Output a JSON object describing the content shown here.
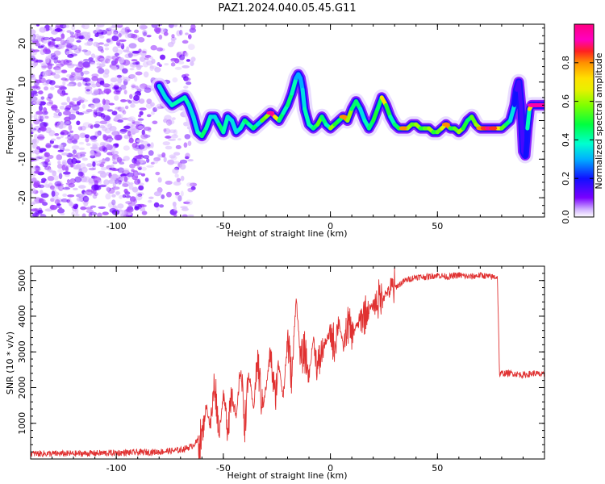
{
  "title": "PAZ1.2024.040.05.45.G11",
  "chart_data": [
    {
      "type": "heatmap",
      "xlabel": "Height of straight line (km)",
      "ylabel": "Frequency (Hz)",
      "xlim": [
        -140,
        100
      ],
      "ylim": [
        -25,
        25
      ],
      "xticks": [
        -100,
        -50,
        0,
        50
      ],
      "yticks": [
        -20,
        -10,
        0,
        10,
        20
      ],
      "grid": false,
      "colorbar": {
        "label": "Normalized spectral amplitude",
        "range": [
          0,
          1
        ],
        "ticks": [
          0.0,
          0.2,
          0.4,
          0.6,
          0.8
        ],
        "colormap": "gist_ncar"
      },
      "noise_region": {
        "x_range": [
          -140,
          -64
        ],
        "y_range": [
          -25,
          25
        ]
      },
      "ridge": {
        "x": [
          -80,
          -77,
          -74,
          -71,
          -68,
          -66,
          -64,
          -62,
          -60,
          -58,
          -56,
          -54,
          -52,
          -50,
          -48,
          -46,
          -44,
          -42,
          -40,
          -38,
          -36,
          -34,
          -32,
          -30,
          -28,
          -26,
          -24,
          -22,
          -20,
          -18,
          -16,
          -15,
          -14,
          -13,
          -12,
          -10,
          -8,
          -6,
          -4,
          -2,
          0,
          2,
          4,
          6,
          8,
          10,
          12,
          14,
          16,
          18,
          20,
          22,
          24,
          26,
          28,
          30,
          32,
          34,
          36,
          38,
          40,
          42,
          44,
          46,
          48,
          50,
          52,
          54,
          56,
          58,
          60,
          62,
          64,
          66,
          68,
          70,
          72,
          74,
          76,
          78,
          80,
          82,
          84,
          86,
          87,
          88,
          89,
          90,
          91,
          92,
          93,
          94,
          96,
          98,
          100
        ],
        "y": [
          9,
          6,
          4,
          5,
          6,
          4,
          1,
          -3,
          -4,
          -2,
          1,
          1,
          -1,
          -3,
          1,
          0,
          -3,
          -2,
          0,
          -1,
          -2,
          -1,
          0,
          1,
          2,
          1,
          0,
          2,
          4,
          7,
          11,
          12,
          11,
          8,
          3,
          -1,
          -2,
          -1,
          1,
          -1,
          -2,
          -1,
          0,
          1,
          0,
          3,
          5,
          3,
          0,
          -2,
          0,
          3,
          6,
          4,
          1,
          -1,
          -2,
          -2,
          -2,
          -1,
          -1,
          -2,
          -2,
          -2,
          -3,
          -3,
          -2,
          -1,
          -2,
          -2,
          -3,
          -2,
          0,
          1,
          -1,
          -2,
          -2,
          -2,
          -2,
          -2,
          -2,
          -1,
          0,
          4,
          8,
          10,
          4,
          -8,
          -9,
          -2,
          3,
          4,
          4,
          4,
          4
        ],
        "amplitude": [
          0.35,
          0.35,
          0.4,
          0.4,
          0.4,
          0.35,
          0.35,
          0.4,
          0.45,
          0.4,
          0.35,
          0.35,
          0.45,
          0.4,
          0.35,
          0.35,
          0.35,
          0.4,
          0.45,
          0.4,
          0.45,
          0.35,
          0.55,
          0.6,
          0.9,
          0.7,
          0.45,
          0.4,
          0.45,
          0.4,
          0.3,
          0.3,
          0.3,
          0.35,
          0.4,
          0.4,
          0.45,
          0.55,
          0.45,
          0.4,
          0.6,
          0.5,
          0.45,
          0.8,
          0.6,
          0.45,
          0.45,
          0.35,
          0.4,
          0.45,
          0.5,
          0.45,
          0.7,
          0.5,
          0.4,
          0.45,
          0.5,
          0.8,
          0.6,
          0.55,
          0.6,
          0.5,
          0.55,
          0.6,
          0.5,
          0.55,
          0.65,
          0.8,
          0.5,
          0.55,
          0.6,
          0.5,
          0.45,
          0.55,
          0.6,
          0.8,
          0.85,
          0.9,
          0.85,
          0.7,
          0.55,
          0.45,
          0.35,
          0.2,
          0.15,
          0.15,
          0.15,
          0.15,
          0.2,
          0.4,
          0.7,
          0.95,
          0.95,
          0.95,
          0.95
        ]
      }
    },
    {
      "type": "line",
      "xlabel": "Height of straight line (km)",
      "ylabel": "SNR (10 * v/v)",
      "xlim": [
        -140,
        100
      ],
      "ylim": [
        0,
        5400
      ],
      "xticks": [
        -100,
        -50,
        0,
        50
      ],
      "yticks": [
        1000,
        2000,
        3000,
        4000,
        5000
      ],
      "grid": false,
      "series": [
        {
          "color": "#e03131",
          "x": [
            -140,
            -120,
            -100,
            -80,
            -70,
            -65,
            -60,
            -58,
            -56,
            -54,
            -52,
            -50,
            -48,
            -46,
            -44,
            -42,
            -40,
            -38,
            -36,
            -34,
            -32,
            -30,
            -28,
            -26,
            -24,
            -22,
            -20,
            -18,
            -16,
            -14,
            -12,
            -10,
            -8,
            -6,
            -4,
            -2,
            0,
            2,
            4,
            6,
            8,
            10,
            15,
            20,
            25,
            30,
            35,
            40,
            45,
            50,
            55,
            60,
            65,
            70,
            75,
            78,
            79,
            80,
            85,
            90,
            95,
            100
          ],
          "y": [
            150,
            150,
            170,
            200,
            250,
            350,
            600,
            1500,
            900,
            2200,
            700,
            1800,
            900,
            2000,
            1100,
            2600,
            1000,
            2400,
            1400,
            2800,
            1500,
            2000,
            3000,
            1700,
            2700,
            1700,
            3400,
            2200,
            4600,
            2800,
            3000,
            2300,
            3400,
            2500,
            3000,
            3300,
            3500,
            3200,
            3900,
            3100,
            3800,
            3500,
            4000,
            4300,
            4600,
            4800,
            5000,
            5100,
            5100,
            5150,
            5100,
            5150,
            5100,
            5150,
            5100,
            5100,
            2350,
            2400,
            2400,
            2350,
            2400,
            2350
          ],
          "noise_amplitude": 90
        }
      ]
    }
  ]
}
